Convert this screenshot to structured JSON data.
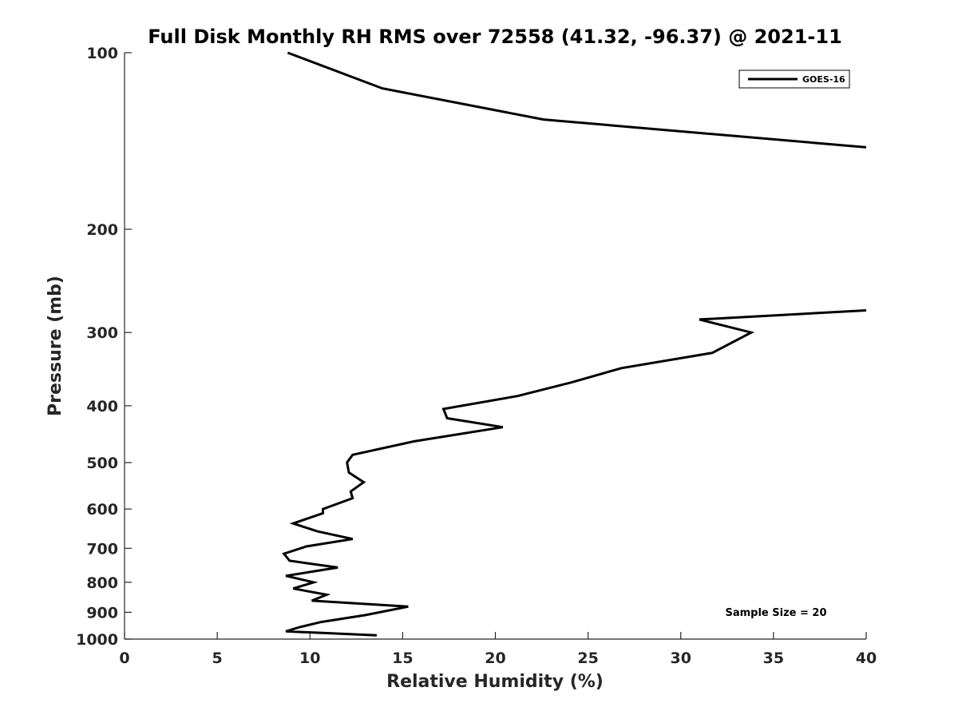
{
  "chart_data": {
    "type": "line",
    "title": "Full Disk Monthly RH RMS over 72558 (41.32, -96.37) @ 2021-11",
    "xlabel": "Relative Humidity (%)",
    "ylabel": "Pressure (mb)",
    "xlim": [
      0,
      40
    ],
    "ylim": [
      1000,
      100
    ],
    "yscale": "log",
    "xticks": [
      0,
      5,
      10,
      15,
      20,
      25,
      30,
      35,
      40
    ],
    "xtick_labels": [
      "0",
      "5",
      "10",
      "15",
      "20",
      "25",
      "30",
      "35",
      "40"
    ],
    "yticks": [
      100,
      200,
      300,
      400,
      500,
      600,
      700,
      800,
      900,
      1000
    ],
    "ytick_labels": [
      "100",
      "200",
      "300",
      "400",
      "500",
      "600",
      "700",
      "800",
      "900",
      "1000"
    ],
    "grid": false,
    "legend_position": "top-right",
    "annotation": "Sample Size = 20",
    "series": [
      {
        "name": "GOES-16",
        "color": "#000000",
        "segments": [
          {
            "x": [
              8.8,
              13.9,
              22.6,
              40.0
            ],
            "y": [
              100,
              115,
              130,
              145
            ]
          },
          {
            "x": [
              40.0,
              31.0,
              33.8,
              31.7,
              26.8,
              24.1,
              21.2,
              17.2,
              17.4,
              20.4,
              15.6,
              12.3,
              12.0,
              12.1,
              12.9,
              12.2,
              12.3,
              10.7,
              10.7,
              9.1,
              10.4,
              12.3,
              9.8,
              8.6,
              8.9,
              11.5,
              8.7,
              10.2,
              9.1,
              10.9,
              10.1,
              15.3,
              13.0,
              10.6,
              9.4,
              8.7,
              13.6
            ],
            "y": [
              275,
              285,
              300,
              325,
              345,
              365,
              385,
              405,
              420,
              435,
              460,
              485,
              500,
              520,
              540,
              560,
              575,
              600,
              610,
              635,
              655,
              675,
              695,
              715,
              735,
              755,
              780,
              800,
              820,
              840,
              860,
              880,
              910,
              935,
              955,
              970,
              985
            ]
          }
        ]
      }
    ]
  }
}
